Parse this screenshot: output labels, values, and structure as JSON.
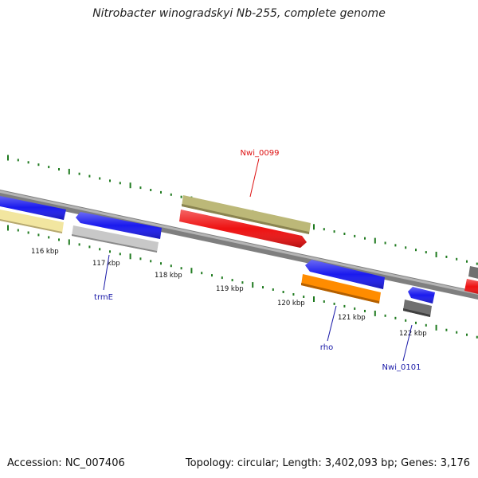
{
  "title": "Nitrobacter winogradskyi Nb-255, complete genome",
  "footer": {
    "accession": "Accession: NC_007406",
    "summary": "Topology: circular; Length: 3,402,093 bp; Genes: 3,176"
  },
  "ruler": {
    "ticks": [
      {
        "label": "116 kbp",
        "kbp": 116
      },
      {
        "label": "117 kbp",
        "kbp": 117
      },
      {
        "label": "118 kbp",
        "kbp": 118
      },
      {
        "label": "119 kbp",
        "kbp": 119
      },
      {
        "label": "120 kbp",
        "kbp": 120
      },
      {
        "label": "121 kbp",
        "kbp": 121
      },
      {
        "label": "122 kbp",
        "kbp": 122
      }
    ]
  },
  "genes": [
    {
      "strand": "+",
      "color": "#1a1aee"
    },
    {
      "strand": "-",
      "color": "#1a1aee",
      "label": "trmE",
      "label_color": "#1a1aa8"
    },
    {
      "strand": "+",
      "color": "#ee1111",
      "label": "Nwi_0099",
      "label_color": "#dd1111"
    },
    {
      "strand": "-",
      "color": "#1a1aee",
      "label": "rho",
      "label_color": "#1a1aa8"
    },
    {
      "strand": "-",
      "color": "#1a1aee",
      "label": "Nwi_0101",
      "label_color": "#1a1aa8"
    },
    {
      "strand": "+",
      "color": "#ee1111"
    }
  ],
  "cog_bands": [
    {
      "color": "#f2e6a0"
    },
    {
      "color": "#c8c8c8"
    },
    {
      "color": "#bcb878"
    },
    {
      "color": "#ff8c00"
    },
    {
      "color": "#707070"
    },
    {
      "color": "#707070"
    }
  ],
  "colors": {
    "backbone": "#888888",
    "tick_marks": "#1f7a1f"
  }
}
